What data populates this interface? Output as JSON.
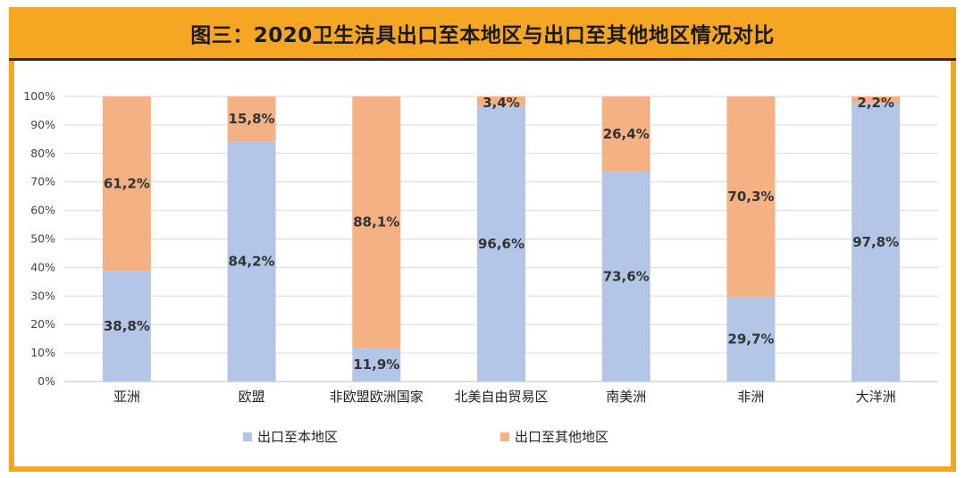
{
  "header": {
    "title": "图三：2020卫生洁具出口至本地区与出口至其他地区情况对比"
  },
  "colors": {
    "frame": "#f5a623",
    "series_local": "#b4c6e7",
    "series_other": "#f4b183"
  },
  "chart_data": {
    "type": "bar",
    "stacked": true,
    "percent": true,
    "categories": [
      "亚洲",
      "欧盟",
      "非欧盟欧洲国家",
      "北美自由贸易区",
      "南美洲",
      "非洲",
      "大洋洲"
    ],
    "series": [
      {
        "name": "出口至本地区",
        "values": [
          38.8,
          84.2,
          11.9,
          96.6,
          73.6,
          29.7,
          97.8
        ],
        "labels": [
          "38,8%",
          "84,2%",
          "11,9%",
          "96,6%",
          "73,6%",
          "29,7%",
          "97,8%"
        ]
      },
      {
        "name": "出口至其他地区",
        "values": [
          61.2,
          15.8,
          88.1,
          3.4,
          26.4,
          70.3,
          2.2
        ],
        "labels": [
          "61,2%",
          "15,8%",
          "88,1%",
          "3,4%",
          "26,4%",
          "70,3%",
          "2,2%"
        ]
      }
    ],
    "ylim": [
      0,
      100
    ],
    "yticks": [
      "0%",
      "10%",
      "20%",
      "30%",
      "40%",
      "50%",
      "60%",
      "70%",
      "80%",
      "90%",
      "100%"
    ],
    "grid": true,
    "legend_position": "bottom"
  }
}
